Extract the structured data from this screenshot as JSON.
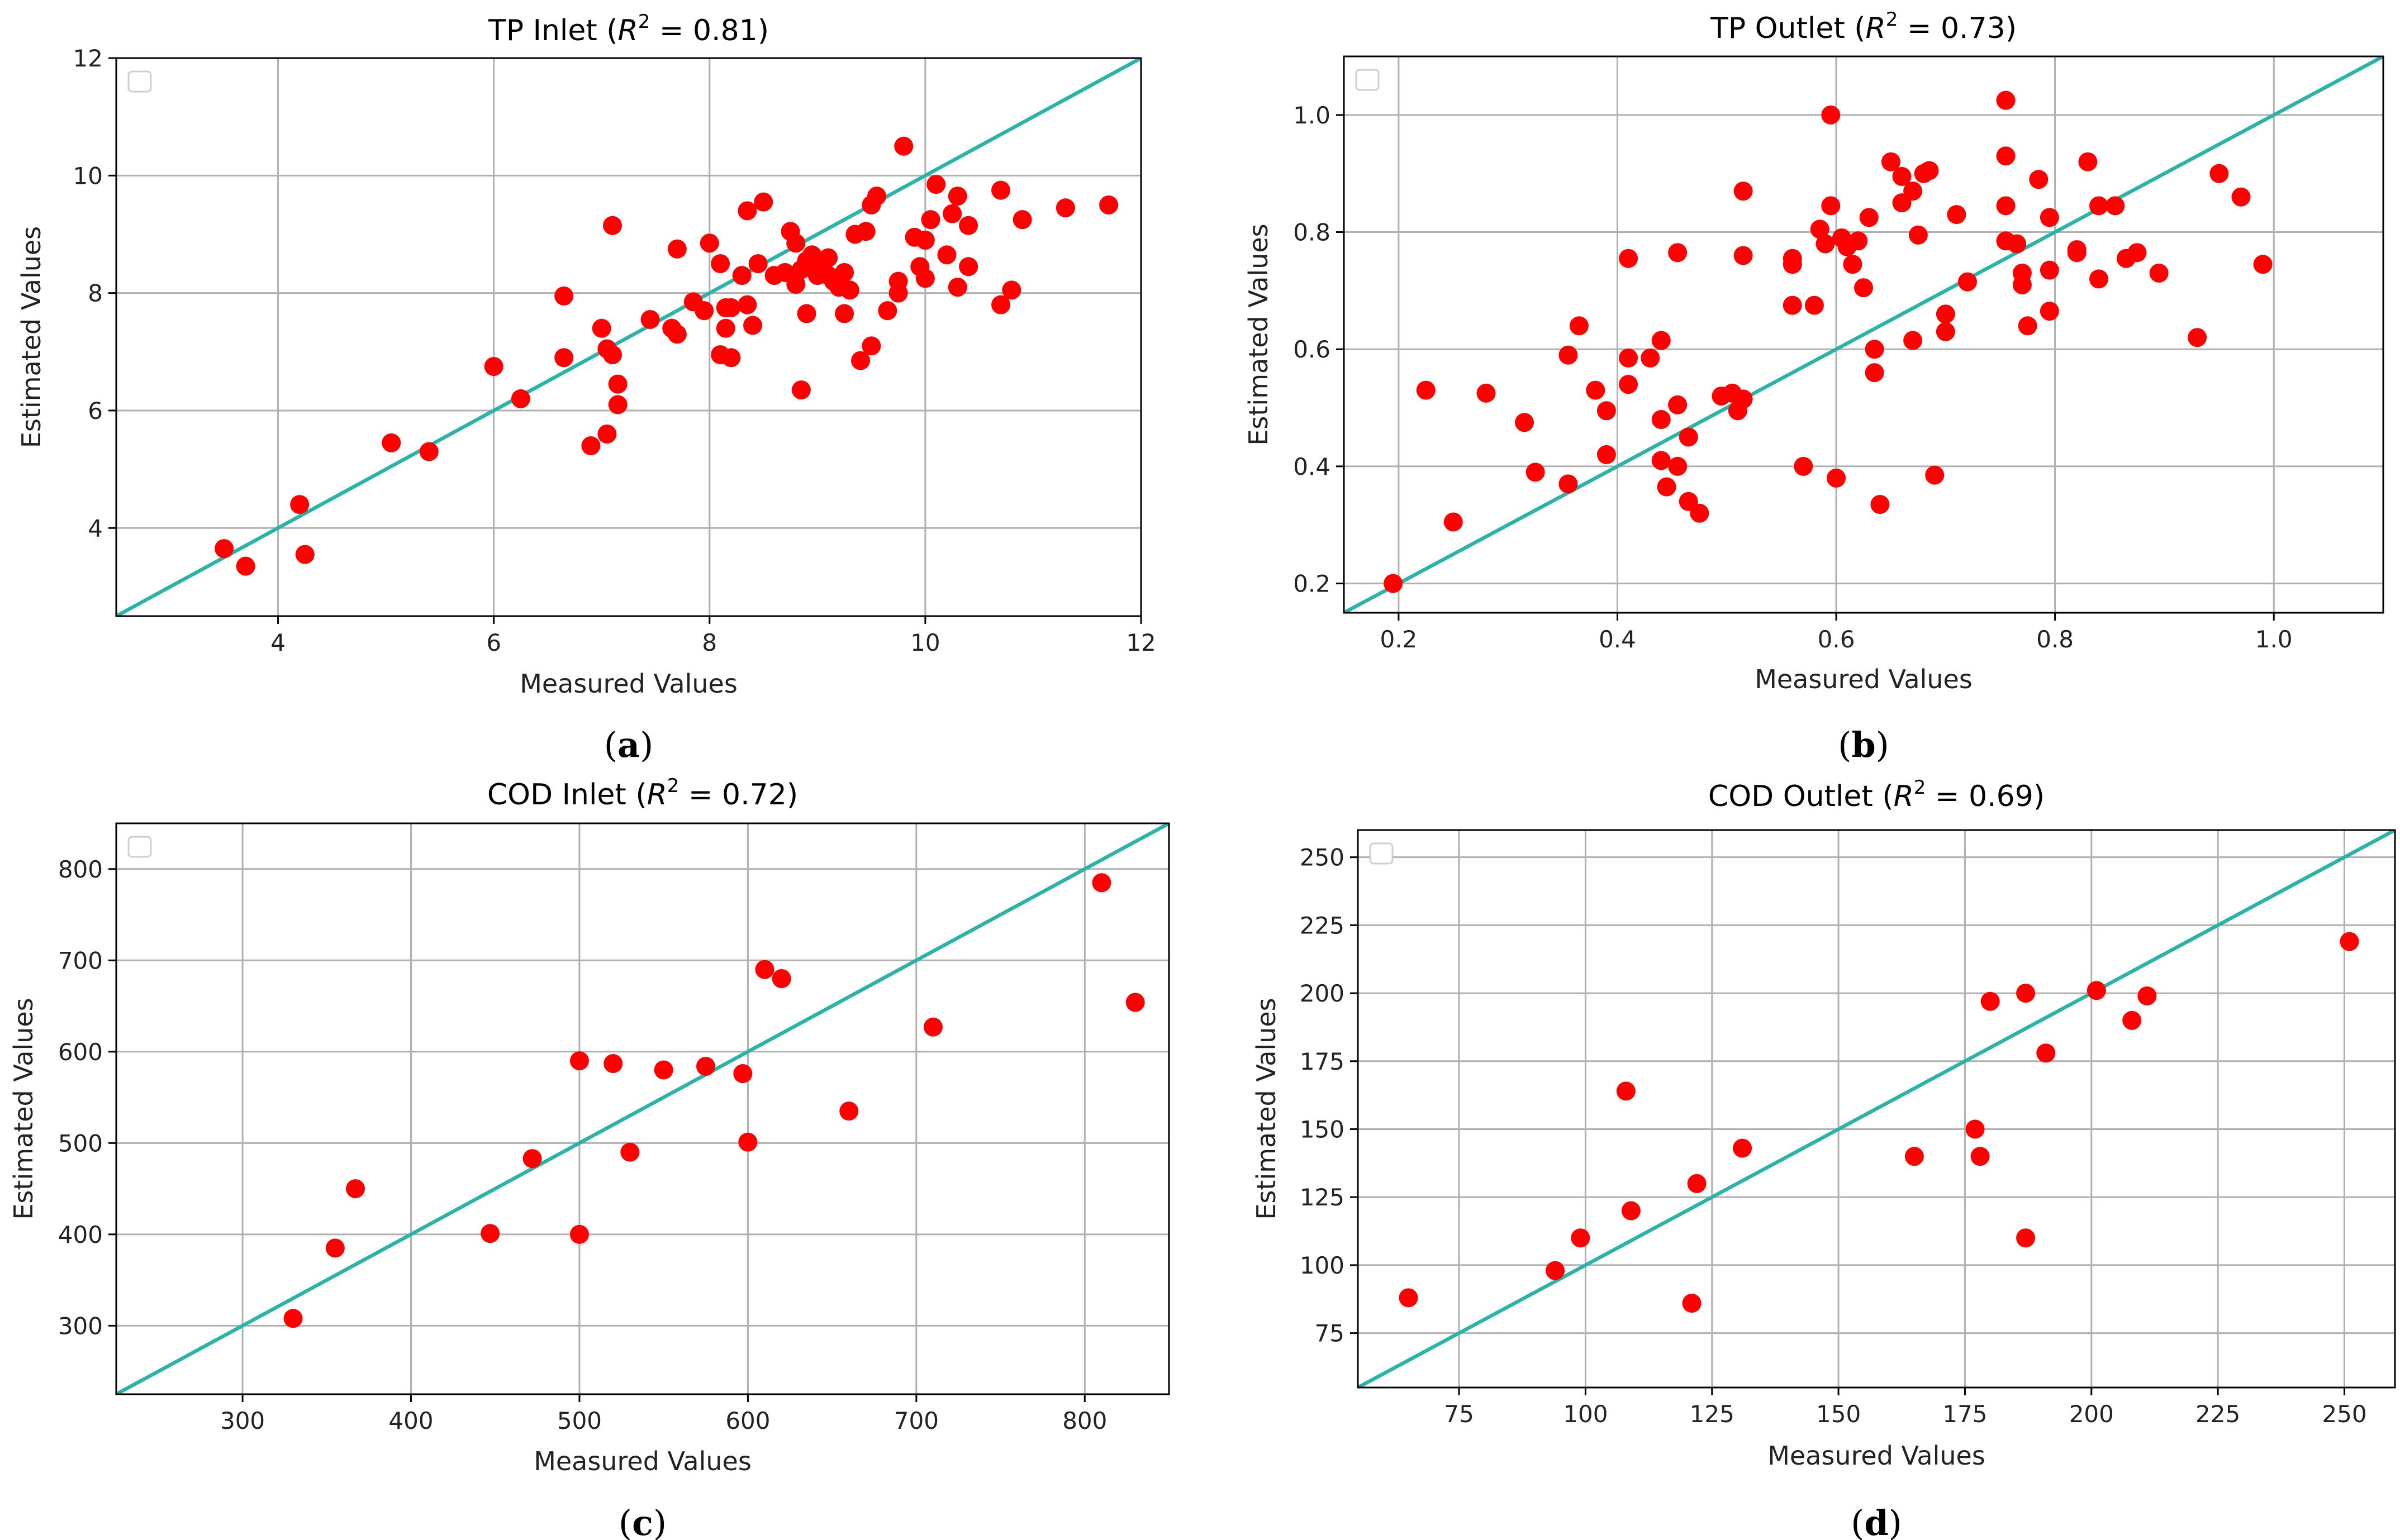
{
  "chart_data": [
    {
      "type": "scatter",
      "title": "TP Inlet",
      "r2_label": "0.81",
      "caption": "a",
      "xlabel": "Measured Values",
      "ylabel": "Estimated Values",
      "xlim": [
        2.5,
        12
      ],
      "ylim": [
        2.5,
        12
      ],
      "xticks": [
        4,
        6,
        8,
        10,
        12
      ],
      "yticks": [
        4,
        6,
        8,
        10,
        12
      ],
      "grid": true,
      "legend": "top-left (empty)",
      "marker_color": "#ff0000",
      "line_color": "#2ab4a8",
      "reference_line": "y = x",
      "points": [
        [
          3.5,
          3.65
        ],
        [
          3.7,
          3.35
        ],
        [
          4.2,
          4.4
        ],
        [
          4.25,
          3.55
        ],
        [
          5.05,
          5.45
        ],
        [
          5.4,
          5.3
        ],
        [
          6.0,
          6.75
        ],
        [
          6.25,
          6.2
        ],
        [
          6.65,
          7.95
        ],
        [
          6.65,
          6.9
        ],
        [
          6.9,
          5.4
        ],
        [
          7.0,
          7.4
        ],
        [
          7.05,
          7.05
        ],
        [
          7.05,
          5.6
        ],
        [
          7.1,
          9.15
        ],
        [
          7.1,
          6.95
        ],
        [
          7.15,
          6.45
        ],
        [
          7.15,
          6.1
        ],
        [
          7.45,
          7.55
        ],
        [
          7.65,
          7.4
        ],
        [
          7.7,
          7.3
        ],
        [
          7.7,
          8.75
        ],
        [
          7.85,
          7.85
        ],
        [
          7.95,
          7.7
        ],
        [
          8.0,
          8.85
        ],
        [
          8.1,
          6.95
        ],
        [
          8.1,
          8.5
        ],
        [
          8.15,
          7.4
        ],
        [
          8.15,
          7.75
        ],
        [
          8.2,
          6.9
        ],
        [
          8.2,
          7.75
        ],
        [
          8.3,
          8.3
        ],
        [
          8.35,
          7.8
        ],
        [
          8.35,
          9.4
        ],
        [
          8.4,
          7.45
        ],
        [
          8.45,
          8.5
        ],
        [
          8.5,
          9.55
        ],
        [
          8.6,
          8.3
        ],
        [
          8.7,
          8.35
        ],
        [
          8.75,
          9.05
        ],
        [
          8.8,
          8.15
        ],
        [
          8.8,
          8.85
        ],
        [
          8.85,
          6.35
        ],
        [
          8.85,
          8.4
        ],
        [
          8.9,
          8.55
        ],
        [
          8.9,
          7.65
        ],
        [
          8.95,
          8.65
        ],
        [
          9.0,
          8.3
        ],
        [
          9.05,
          8.45
        ],
        [
          9.1,
          8.3
        ],
        [
          9.1,
          8.6
        ],
        [
          9.15,
          8.2
        ],
        [
          9.2,
          8.1
        ],
        [
          9.25,
          8.35
        ],
        [
          9.25,
          7.65
        ],
        [
          9.3,
          8.05
        ],
        [
          9.35,
          9.0
        ],
        [
          9.4,
          6.85
        ],
        [
          9.45,
          9.05
        ],
        [
          9.5,
          7.1
        ],
        [
          9.5,
          9.5
        ],
        [
          9.55,
          9.65
        ],
        [
          9.65,
          7.7
        ],
        [
          9.75,
          8.0
        ],
        [
          9.75,
          8.2
        ],
        [
          9.8,
          10.5
        ],
        [
          9.9,
          8.95
        ],
        [
          9.95,
          8.45
        ],
        [
          10.0,
          8.9
        ],
        [
          10.0,
          8.25
        ],
        [
          10.05,
          9.25
        ],
        [
          10.1,
          9.85
        ],
        [
          10.2,
          8.65
        ],
        [
          10.25,
          9.35
        ],
        [
          10.3,
          9.65
        ],
        [
          10.3,
          8.1
        ],
        [
          10.4,
          9.15
        ],
        [
          10.4,
          8.45
        ],
        [
          10.7,
          9.75
        ],
        [
          10.7,
          7.8
        ],
        [
          10.8,
          8.05
        ],
        [
          10.9,
          9.25
        ],
        [
          11.3,
          9.45
        ],
        [
          11.7,
          9.5
        ]
      ]
    },
    {
      "type": "scatter",
      "title": "TP Outlet",
      "r2_label": "0.73",
      "caption": "b",
      "xlabel": "Measured Values",
      "ylabel": "Estimated Values",
      "xlim": [
        0.15,
        1.1
      ],
      "ylim": [
        0.15,
        1.1
      ],
      "xticks": [
        0.2,
        0.4,
        0.6,
        0.8,
        1.0
      ],
      "yticks": [
        0.2,
        0.4,
        0.6,
        0.8,
        1.0
      ],
      "grid": true,
      "legend": "top-left (empty)",
      "marker_color": "#ff0000",
      "line_color": "#2ab4a8",
      "reference_line": "y = x",
      "points": [
        [
          0.195,
          0.2
        ],
        [
          0.225,
          0.53
        ],
        [
          0.25,
          0.305
        ],
        [
          0.28,
          0.525
        ],
        [
          0.315,
          0.475
        ],
        [
          0.325,
          0.39
        ],
        [
          0.355,
          0.59
        ],
        [
          0.355,
          0.37
        ],
        [
          0.365,
          0.64
        ],
        [
          0.38,
          0.53
        ],
        [
          0.39,
          0.42
        ],
        [
          0.39,
          0.495
        ],
        [
          0.41,
          0.755
        ],
        [
          0.41,
          0.585
        ],
        [
          0.41,
          0.54
        ],
        [
          0.43,
          0.585
        ],
        [
          0.44,
          0.48
        ],
        [
          0.44,
          0.615
        ],
        [
          0.44,
          0.41
        ],
        [
          0.445,
          0.365
        ],
        [
          0.455,
          0.765
        ],
        [
          0.455,
          0.505
        ],
        [
          0.455,
          0.4
        ],
        [
          0.465,
          0.34
        ],
        [
          0.465,
          0.45
        ],
        [
          0.475,
          0.32
        ],
        [
          0.495,
          0.52
        ],
        [
          0.505,
          0.525
        ],
        [
          0.51,
          0.495
        ],
        [
          0.515,
          0.515
        ],
        [
          0.515,
          0.87
        ],
        [
          0.515,
          0.76
        ],
        [
          0.56,
          0.755
        ],
        [
          0.56,
          0.745
        ],
        [
          0.56,
          0.675
        ],
        [
          0.57,
          0.4
        ],
        [
          0.58,
          0.675
        ],
        [
          0.585,
          0.805
        ],
        [
          0.59,
          0.78
        ],
        [
          0.595,
          1.0
        ],
        [
          0.595,
          0.845
        ],
        [
          0.6,
          0.38
        ],
        [
          0.605,
          0.79
        ],
        [
          0.61,
          0.775
        ],
        [
          0.615,
          0.745
        ],
        [
          0.62,
          0.785
        ],
        [
          0.625,
          0.705
        ],
        [
          0.63,
          0.825
        ],
        [
          0.635,
          0.56
        ],
        [
          0.635,
          0.6
        ],
        [
          0.64,
          0.335
        ],
        [
          0.65,
          0.92
        ],
        [
          0.66,
          0.895
        ],
        [
          0.66,
          0.85
        ],
        [
          0.67,
          0.87
        ],
        [
          0.67,
          0.615
        ],
        [
          0.675,
          0.795
        ],
        [
          0.68,
          0.9
        ],
        [
          0.685,
          0.905
        ],
        [
          0.69,
          0.385
        ],
        [
          0.7,
          0.66
        ],
        [
          0.7,
          0.63
        ],
        [
          0.71,
          0.83
        ],
        [
          0.72,
          0.715
        ],
        [
          0.755,
          1.025
        ],
        [
          0.755,
          0.93
        ],
        [
          0.755,
          0.845
        ],
        [
          0.755,
          0.785
        ],
        [
          0.765,
          0.78
        ],
        [
          0.77,
          0.73
        ],
        [
          0.77,
          0.71
        ],
        [
          0.775,
          0.64
        ],
        [
          0.785,
          0.89
        ],
        [
          0.795,
          0.825
        ],
        [
          0.795,
          0.735
        ],
        [
          0.795,
          0.665
        ],
        [
          0.82,
          0.77
        ],
        [
          0.82,
          0.765
        ],
        [
          0.83,
          0.92
        ],
        [
          0.84,
          0.845
        ],
        [
          0.84,
          0.72
        ],
        [
          0.855,
          0.845
        ],
        [
          0.865,
          0.755
        ],
        [
          0.875,
          0.765
        ],
        [
          0.895,
          0.73
        ],
        [
          0.93,
          0.62
        ],
        [
          0.95,
          0.9
        ],
        [
          0.97,
          0.86
        ],
        [
          0.99,
          0.745
        ]
      ]
    },
    {
      "type": "scatter",
      "title": "COD Inlet",
      "r2_label": "0.72",
      "caption": "c",
      "xlabel": "Measured Values",
      "ylabel": "Estimated Values",
      "xlim": [
        225,
        850
      ],
      "ylim": [
        225,
        850
      ],
      "xticks": [
        300,
        400,
        500,
        600,
        700,
        800
      ],
      "yticks": [
        300,
        400,
        500,
        600,
        700,
        800
      ],
      "grid": true,
      "legend": "top-left (empty)",
      "marker_color": "#ff0000",
      "line_color": "#2ab4a8",
      "reference_line": "y = x",
      "points": [
        [
          330,
          308
        ],
        [
          355,
          385
        ],
        [
          367,
          450
        ],
        [
          447,
          401
        ],
        [
          472,
          483
        ],
        [
          500,
          590
        ],
        [
          500,
          400
        ],
        [
          520,
          587
        ],
        [
          530,
          490
        ],
        [
          550,
          580
        ],
        [
          575,
          584
        ],
        [
          597,
          576
        ],
        [
          600,
          501
        ],
        [
          610,
          690
        ],
        [
          620,
          680
        ],
        [
          660,
          535
        ],
        [
          710,
          627
        ],
        [
          810,
          785
        ],
        [
          830,
          654
        ]
      ]
    },
    {
      "type": "scatter",
      "title": "COD Outlet",
      "r2_label": "0.69",
      "caption": "d",
      "xlabel": "Measured Values",
      "ylabel": "Estimated Values",
      "xlim": [
        55,
        260
      ],
      "ylim": [
        55,
        260
      ],
      "xticks": [
        75,
        100,
        125,
        150,
        175,
        200,
        225,
        250
      ],
      "yticks": [
        75,
        100,
        125,
        150,
        175,
        200,
        225,
        250
      ],
      "grid": true,
      "legend": "top-left (empty)",
      "marker_color": "#ff0000",
      "line_color": "#2ab4a8",
      "reference_line": "y = x",
      "points": [
        [
          65,
          88
        ],
        [
          94,
          98
        ],
        [
          99,
          110
        ],
        [
          108,
          164
        ],
        [
          109,
          120
        ],
        [
          121,
          86
        ],
        [
          122,
          130
        ],
        [
          131,
          143
        ],
        [
          165,
          140
        ],
        [
          177,
          150
        ],
        [
          178,
          140
        ],
        [
          180,
          197
        ],
        [
          187,
          200
        ],
        [
          187,
          110
        ],
        [
          191,
          178
        ],
        [
          201,
          201
        ],
        [
          208,
          190
        ],
        [
          211,
          199
        ],
        [
          251,
          219
        ]
      ]
    }
  ]
}
